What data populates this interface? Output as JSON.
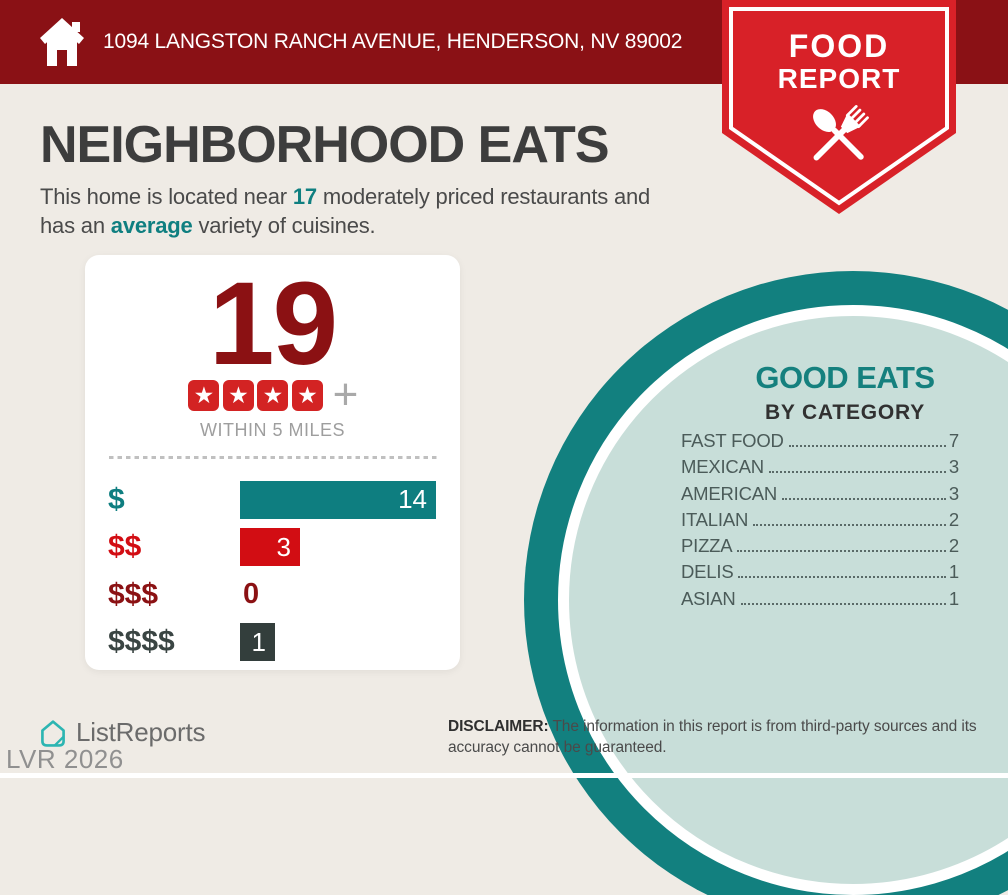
{
  "header": {
    "address": "1094 LANGSTON RANCH AVENUE, HENDERSON, NV 89002",
    "background_color": "#8a1115"
  },
  "ribbon": {
    "line1": "FOOD",
    "line2": "REPORT",
    "color": "#d82128",
    "icon": "crossed-spoon-and-fork"
  },
  "title": "NEIGHBORHOOD EATS",
  "intro": {
    "segment1": "This home is located near ",
    "count": "17",
    "segment2": " moderately priced restaurants and has an ",
    "highlight": "average",
    "segment3": " variety of cuisines.",
    "accent_color": "#0f7f80"
  },
  "summary_card": {
    "total": "19",
    "star_count": 4,
    "star_color": "#d32323",
    "plus": "+",
    "caption": "WITHIN 5 MILES"
  },
  "chart_data": {
    "type": "bar",
    "categories": [
      "$",
      "$$",
      "$$$",
      "$$$$"
    ],
    "values": [
      14,
      3,
      0,
      1
    ],
    "bar_colors": [
      "#0e7e80",
      "#d20d13",
      "#8b1113",
      "#333e3c"
    ],
    "label_colors": [
      "#0e7e80",
      "#d20d13",
      "#8b1113",
      "#3a4543"
    ],
    "xlim": [
      0,
      14
    ],
    "orientation": "horizontal",
    "value_labels": [
      "14",
      "3",
      "0",
      "1"
    ]
  },
  "good_eats": {
    "title": "GOOD EATS",
    "subtitle": "BY CATEGORY",
    "items": [
      {
        "label": "FAST FOOD",
        "value": "7"
      },
      {
        "label": "MEXICAN",
        "value": "3"
      },
      {
        "label": "AMERICAN",
        "value": "3"
      },
      {
        "label": "ITALIAN",
        "value": "2"
      },
      {
        "label": "PIZZA",
        "value": "2"
      },
      {
        "label": "DELIS",
        "value": "1"
      },
      {
        "label": "ASIAN",
        "value": "1"
      }
    ],
    "circle_colors": {
      "ring": "#12807f",
      "gap": "#ffffff",
      "fill": "#c8ded9"
    }
  },
  "footer": {
    "brand": "ListReports",
    "disclaimer_label": "DISCLAIMER:",
    "disclaimer_text": " The information in this report is from third-party sources and its accuracy cannot be guaranteed.",
    "watermark": "LVR 2026"
  }
}
